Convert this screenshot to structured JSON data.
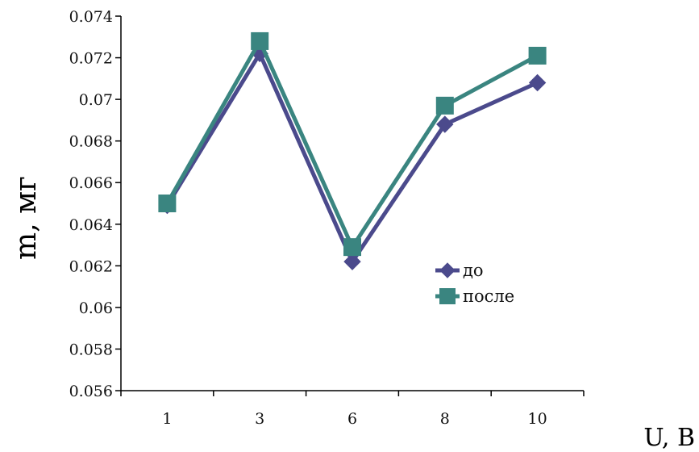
{
  "chart_data": {
    "type": "line",
    "categories": [
      "1",
      "3",
      "6",
      "8",
      "10"
    ],
    "series": [
      {
        "name": "до",
        "values": [
          0.0649,
          0.0722,
          0.0622,
          0.0688,
          0.0708
        ],
        "color": "#4b4a8c",
        "marker": "diamond"
      },
      {
        "name": "после",
        "values": [
          0.065,
          0.0728,
          0.0629,
          0.0697,
          0.0721
        ],
        "color": "#3a8580",
        "marker": "square"
      }
    ],
    "xlabel": "U, В",
    "ylabel": "m, мг",
    "ylim": [
      0.056,
      0.074
    ],
    "yticks": [
      "0.056",
      "0.058",
      "0.06",
      "0.062",
      "0.064",
      "0.066",
      "0.068",
      "0.07",
      "0.072",
      "0.074"
    ],
    "grid": false,
    "legend_position": "center-right"
  }
}
